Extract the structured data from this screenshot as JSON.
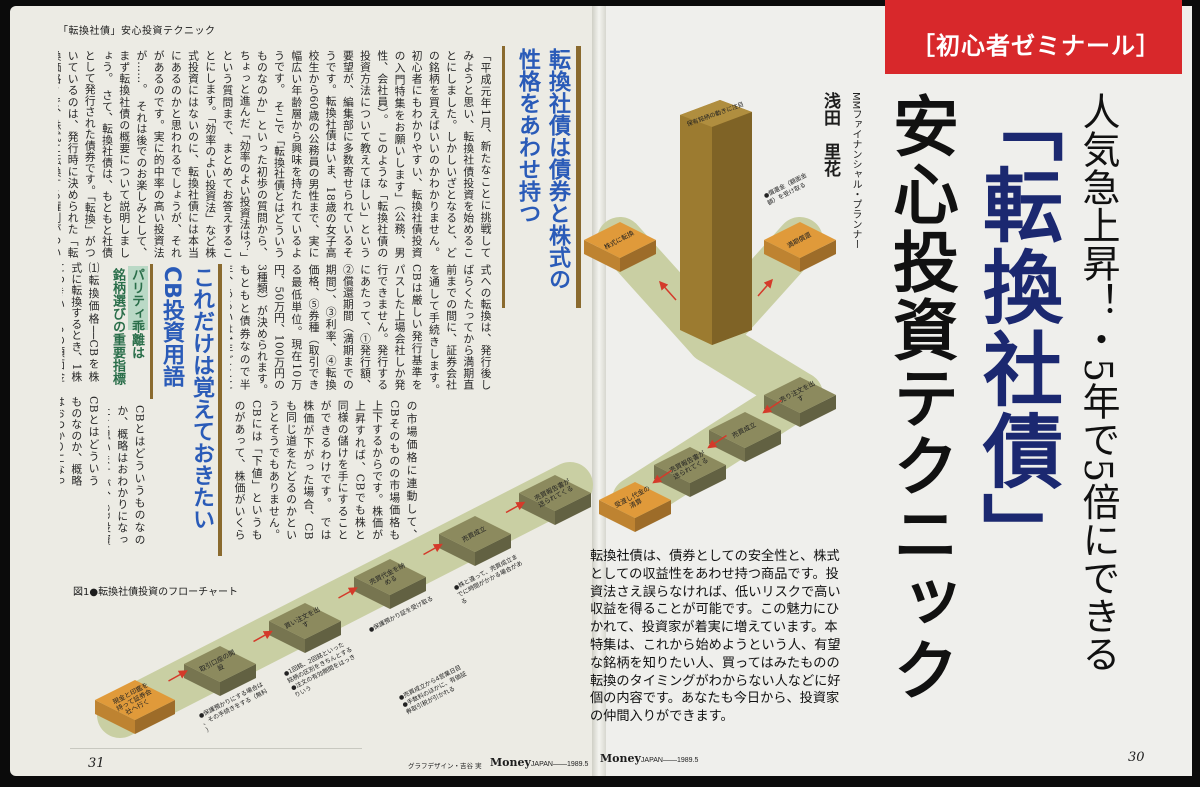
{
  "running_head": "「転換社債」安心投資テクニック",
  "left_page": {
    "heading1": [
      "転換社債は債券と株式の",
      "性格をあわせ持つ"
    ],
    "body1": "「平成元年1月、新たなことに挑戦してみようと思い、転換社債投資を始めることにしました。しかしいざとなると、どの銘柄を買えばいいのかわかりません。初心者にもわかりやすい、転換社債投資の入門特集をお願いします」（公務、男性、会社員）。　このような「転換社債の投資方法について教えてほしい」という要望が、編集部に多数寄せられているそうです。転換社債はいま、18歳の女子高校生から60歳の公務員の男性まで、実に幅広い年齢層から興味を持たれているようです。　そこで「転換社債とはどういうものなのか」といった初歩の質問から、ちょっと進んだ「効率のよい投資法は？」という質問まで、まとめてお答えすることにします。「効率のよい投資法」など株式投資にはないのに、転換社債には本当にあるのかと思われるでしょうが、それがあるのです。実に的中率の高い投資法が……。　それは後でのお楽しみとして、まず転換社債の概要について説明しましょう。　さて、転換社債は、もともと社債として発行された債券です。「転換」がついているのは、発行時に決められた「転換価格」で、株式に転換する権利がついているためです。英語では「Convertible Bond」というので、頭文字をとって「CB」と呼ばれることが多くなっています。CBから株",
    "body2": "式への転換は、発行後しばらくたってから満期直前までの間に、証券会社を通して手続きします。　CBは厳しい発行基準をパスした上場会社しか発行できません。発行するにあたって、①発行額、②償還期間（満期までの期間）、③利率、④転換価格、⑤券種（取引できる最低単位。現在10万円、50万円、100万円の3種類）が決められます。　もともと債券なので半年、あるいは1年ごとに利息がもらえ、償還日（満期日）がくれば額面どおりの金額が返ってきます。つまり発行から償還まで保有した場合、元本割れはありえません。　しかしCBは、そういった債券としての性格とともに、株式としての性格をあわせ持っています。CBは発行後2週間程度で証券取引所に上場され、毎日売買されるようになりますが、これは、発行会社の株式",
    "body3": "の市場価格に連動して、CBそのものの市場価格も上下するからです。株価が上昇すれば、CBでも株と同様の儲けを手にすることができるわけです。　では株価が下がった場合、CBも同じ道をたどるのかというとそうでもありません。CBには「下値」というものがあって、株価がいくら下がっても、下値より下がらないしくみになっているからです（後述）。　ゆえにCBは、投資方法さえ誤らなければ、債券の安全性と株式の収益性を兼ね備えた理想的な金融商品になりえます。",
    "heading2": [
      "これだけは覚えておきたい",
      "CB投資用語"
    ],
    "subheading": [
      "パリティ乖離は",
      "銘柄選びの重要指標"
    ],
    "body4": "CBとはどういうものなのか、概略はおわかりになったと思いますが、CB投資を行なっていく際に頻繁に出てくる用語があります。まず、それらについて、解説しておきましょう。",
    "body5": "⑴転換価格──CBを株式に転換するとき、1株につきいくらの額面金額が必要か",
    "figure_caption": "図1●転換社債投資のフローチャート",
    "page_number": "31",
    "credit": "グラフデザイン・吉谷 実",
    "footer_brand": "Money",
    "footer_sub": "JAPAN——1989.5"
  },
  "flowchart": {
    "steps": [
      {
        "label": "現金と印鑑を持って証券会社へ行く",
        "color": "#e09a3a"
      },
      {
        "label": "取引口座の開設",
        "color": "#8c8a5e"
      },
      {
        "label": "買い注文を出す",
        "color": "#8c8a5e"
      },
      {
        "label": "売買代金を納める",
        "color": "#8c8a5e"
      },
      {
        "label": "売買成立",
        "color": "#8c8a5e"
      },
      {
        "label": "売買報告書が送られてくる",
        "color": "#8c8a5e"
      },
      {
        "label": "売り注文を出す",
        "color": "#8c8a5e"
      },
      {
        "label": "売買成立",
        "color": "#8c8a5e"
      },
      {
        "label": "売買報告書が送られてくる",
        "color": "#8c8a5e"
      },
      {
        "label": "受渡し代金の清算",
        "color": "#e09a3a"
      },
      {
        "label": "株式に転換",
        "color": "#e09a3a"
      },
      {
        "label": "満期償還",
        "color": "#e09a3a"
      }
    ],
    "notes": [
      "●保護預かりにする場合は、その手続きをする（無料）",
      "●1回銘、2回銘といった銘柄の区別をきちんとする ●注文の有効期間をはっきりいう",
      "●保護預かり証を受け取る",
      "●株と違って、売買成立までに時間がかかる場合がある",
      "●償還金（額面金額）を受け取る",
      "●売買成立から4営業日目 ●手数料のほかに、有価証券取引税が引かれる"
    ],
    "tower_label": "保有銘柄の動きに注目",
    "band_color": "#c9cfa3",
    "arrow_color": "#d43a2a"
  },
  "right_page": {
    "banner": "［初心者ゼミナール］",
    "banner_color": "#d8282b",
    "title_line1": "「転換社債」",
    "title_line2": "安心投資テクニック",
    "title_color": "#1b2870",
    "kicker": "人気急上昇！・5年で5倍にできる",
    "author_role": "MMファイナンシャル・プランナー",
    "author": "浅田　里花",
    "lede": "転換社債は、債券としての安全性と、株式としての収益性をあわせ持つ商品です。投資法さえ誤らなければ、低いリスクで高い収益を得ることが可能です。この魅力にひかれて、投資家が着実に増えています。本特集は、これから始めようという人、有望な銘柄を知りたい人、買ってはみたものの転換のタイミングがわからない人などに好個の内容です。あなたも今日から、投資家の仲間入りができます。",
    "footer_brand": "Money",
    "footer_sub": "JAPAN——1989.5",
    "page_number": "30"
  }
}
